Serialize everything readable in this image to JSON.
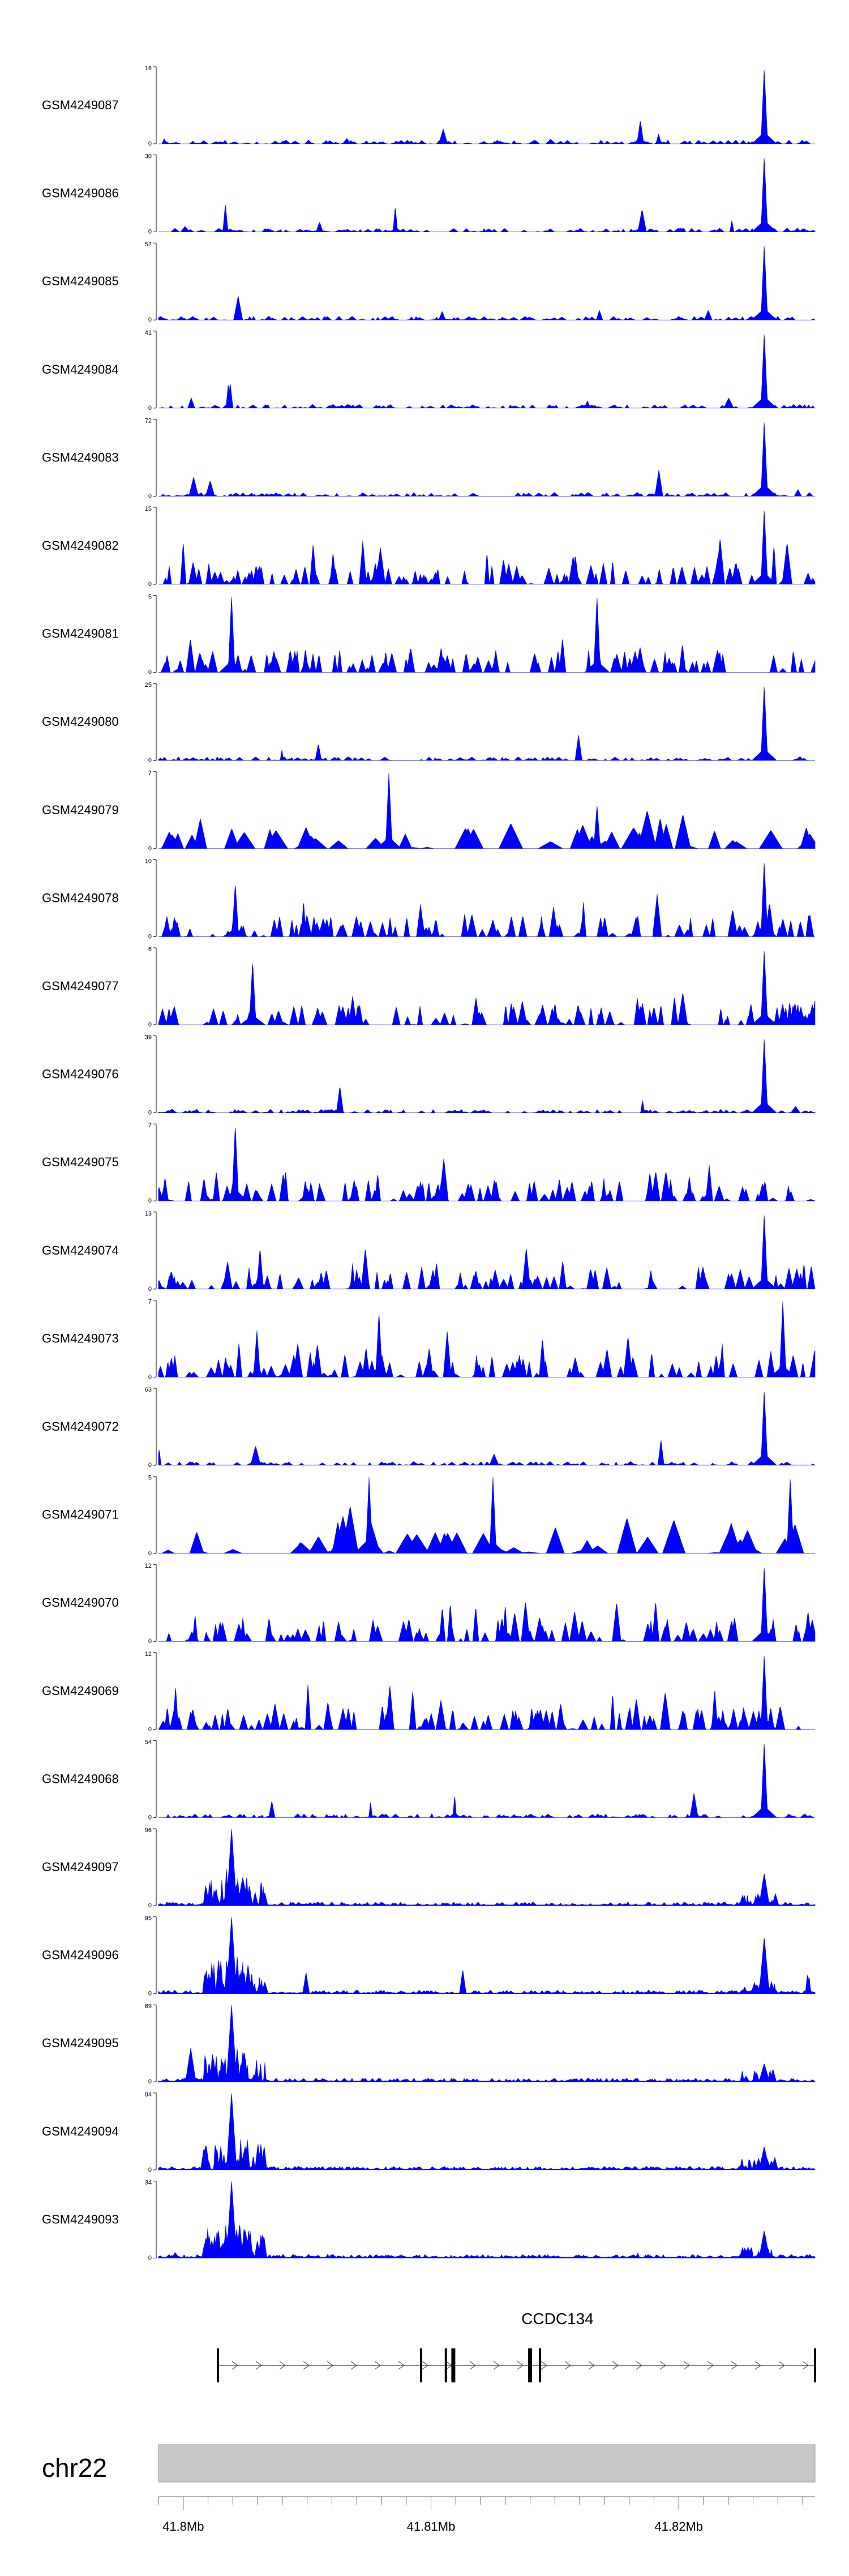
{
  "chart_data": {
    "type": "area",
    "genome": {
      "chromosome": "chr22",
      "x_range": [
        41.799,
        41.8255
      ],
      "ticks": [
        {
          "pos": 41.8,
          "label": "41.8Mb"
        },
        {
          "pos": 41.81,
          "label": "41.81Mb"
        },
        {
          "pos": 41.82,
          "label": "41.82Mb"
        }
      ]
    },
    "gene": {
      "name": "CCDC134",
      "start": 41.8014,
      "end": 41.8255,
      "strand": "+",
      "exons": [
        41.8014,
        41.8096,
        41.8106,
        41.8109,
        41.814,
        41.8144,
        41.8255
      ]
    },
    "peak_locations": [
      41.80195,
      41.82345
    ],
    "tracks": [
      {
        "name": "GSM4249087",
        "ymax": 16,
        "kind": "sparse",
        "peaks": [
          [
            41.82345,
            16
          ],
          [
            41.81845,
            5
          ]
        ]
      },
      {
        "name": "GSM4249086",
        "ymax": 30,
        "kind": "sparse",
        "peaks": [
          [
            41.82345,
            30
          ],
          [
            41.8055,
            4
          ]
        ]
      },
      {
        "name": "GSM4249085",
        "ymax": 52,
        "kind": "sparse",
        "peaks": [
          [
            41.82345,
            52
          ],
          [
            41.81045,
            6
          ]
        ]
      },
      {
        "name": "GSM4249084",
        "ymax": 41,
        "kind": "sparse",
        "peaks": [
          [
            41.82345,
            41
          ]
        ]
      },
      {
        "name": "GSM4249083",
        "ymax": 72,
        "kind": "sparse",
        "peaks": [
          [
            41.82345,
            72
          ]
        ]
      },
      {
        "name": "GSM4249082",
        "ymax": 15,
        "kind": "dense",
        "peaks": [
          [
            41.82345,
            15
          ]
        ]
      },
      {
        "name": "GSM4249081",
        "ymax": 5,
        "kind": "dense",
        "peaks": [
          [
            41.80195,
            5
          ],
          [
            41.8167,
            5
          ]
        ]
      },
      {
        "name": "GSM4249080",
        "ymax": 25,
        "kind": "sparse",
        "peaks": [
          [
            41.82345,
            25
          ]
        ]
      },
      {
        "name": "GSM4249079",
        "ymax": 7,
        "kind": "coarse",
        "peaks": [
          [
            41.8083,
            7
          ],
          [
            41.8167,
            4
          ]
        ]
      },
      {
        "name": "GSM4249078",
        "ymax": 10,
        "kind": "dense",
        "peaks": [
          [
            41.82345,
            10
          ],
          [
            41.8021,
            7
          ]
        ]
      },
      {
        "name": "GSM4249077",
        "ymax": 6,
        "kind": "dense",
        "peaks": [
          [
            41.82345,
            6
          ],
          [
            41.8028,
            5
          ]
        ]
      },
      {
        "name": "GSM4249076",
        "ymax": 39,
        "kind": "sparse",
        "peaks": [
          [
            41.82345,
            39
          ]
        ]
      },
      {
        "name": "GSM4249075",
        "ymax": 7,
        "kind": "dense",
        "peaks": [
          [
            41.8021,
            7
          ]
        ]
      },
      {
        "name": "GSM4249074",
        "ymax": 13,
        "kind": "dense",
        "peaks": [
          [
            41.82345,
            13
          ],
          [
            41.8031,
            7
          ]
        ]
      },
      {
        "name": "GSM4249073",
        "ymax": 7,
        "kind": "dense",
        "peaks": [
          [
            41.8242,
            7
          ],
          [
            41.8079,
            6
          ]
        ]
      },
      {
        "name": "GSM4249072",
        "ymax": 63,
        "kind": "sparse",
        "peaks": [
          [
            41.82345,
            63
          ]
        ]
      },
      {
        "name": "GSM4249071",
        "ymax": 5,
        "kind": "coarse",
        "peaks": [
          [
            41.8075,
            5
          ],
          [
            41.8125,
            5
          ],
          [
            41.8245,
            5
          ]
        ]
      },
      {
        "name": "GSM4249070",
        "ymax": 12,
        "kind": "dense",
        "peaks": [
          [
            41.82345,
            12
          ]
        ]
      },
      {
        "name": "GSM4249069",
        "ymax": 12,
        "kind": "dense",
        "peaks": [
          [
            41.82345,
            12
          ]
        ]
      },
      {
        "name": "GSM4249068",
        "ymax": 54,
        "kind": "sparse",
        "peaks": [
          [
            41.82345,
            54
          ]
        ]
      },
      {
        "name": "GSM4249097",
        "ymax": 96,
        "kind": "cluster",
        "peaks": [
          [
            41.80195,
            96
          ],
          [
            41.8024,
            35
          ],
          [
            41.82345,
            40
          ]
        ]
      },
      {
        "name": "GSM4249096",
        "ymax": 95,
        "kind": "cluster",
        "peaks": [
          [
            41.80195,
            95
          ],
          [
            41.8024,
            25
          ],
          [
            41.82345,
            70
          ]
        ]
      },
      {
        "name": "GSM4249095",
        "ymax": 69,
        "kind": "cluster",
        "peaks": [
          [
            41.80195,
            69
          ],
          [
            41.8003,
            30
          ],
          [
            41.82345,
            16
          ]
        ]
      },
      {
        "name": "GSM4249094",
        "ymax": 84,
        "kind": "cluster",
        "peaks": [
          [
            41.80195,
            84
          ],
          [
            41.8025,
            25
          ],
          [
            41.82345,
            25
          ]
        ]
      },
      {
        "name": "GSM4249093",
        "ymax": 34,
        "kind": "cluster",
        "peaks": [
          [
            41.80195,
            34
          ],
          [
            41.8025,
            12
          ],
          [
            41.82345,
            12
          ]
        ]
      }
    ],
    "fill_color": "#0000ff",
    "ideogram_color": "#c8c8c8"
  }
}
